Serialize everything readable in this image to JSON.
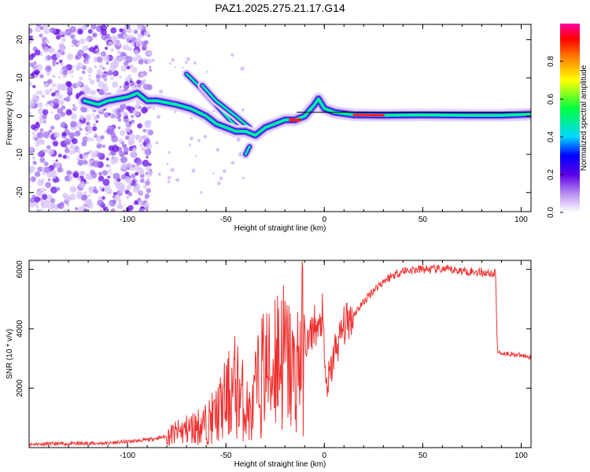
{
  "figure_title": "PAZ1.2025.275.21.17.G14",
  "chart_data": [
    {
      "type": "heatmap",
      "title": "PAZ1.2025.275.21.17.G14",
      "xlabel": "Height of straight line (km)",
      "ylabel": "Frequency (Hz)",
      "xlim": [
        -150,
        105
      ],
      "ylim": [
        -25,
        24
      ],
      "x_ticks": [
        -100,
        -50,
        0,
        50,
        100
      ],
      "y_ticks": [
        -20,
        -10,
        0,
        10,
        20
      ],
      "x_tick_labels": [
        "-100",
        "-50",
        "0",
        "50",
        "100"
      ],
      "y_tick_labels": [
        "-20",
        "-10",
        "0",
        "10",
        "20"
      ],
      "colorbar": {
        "label": "Normalized spectral amplitude",
        "range": [
          0,
          1
        ],
        "ticks": [
          0.0,
          0.2,
          0.4,
          0.6,
          0.8
        ],
        "tick_labels": [
          "0.0",
          "0.2",
          "0.4",
          "0.6",
          "0.8"
        ],
        "colormap": [
          "#ffffff",
          "#b98cf0",
          "#5a00e6",
          "#0000ff",
          "#00d8ff",
          "#00ff40",
          "#ffff00",
          "#ff8000",
          "#ff0000",
          "#ff00a0"
        ]
      },
      "ridge": {
        "description": "dominant frequency trace",
        "points": [
          {
            "x": -122,
            "f": 4
          },
          {
            "x": -115,
            "f": 3
          },
          {
            "x": -110,
            "f": 4
          },
          {
            "x": -100,
            "f": 5
          },
          {
            "x": -95,
            "f": 6
          },
          {
            "x": -90,
            "f": 4
          },
          {
            "x": -85,
            "f": 4
          },
          {
            "x": -75,
            "f": 3
          },
          {
            "x": -68,
            "f": 2
          },
          {
            "x": -60,
            "f": 0
          },
          {
            "x": -55,
            "f": -2
          },
          {
            "x": -50,
            "f": -3
          },
          {
            "x": -45,
            "f": -4
          },
          {
            "x": -40,
            "f": -4
          },
          {
            "x": -35,
            "f": -5
          },
          {
            "x": -30,
            "f": -3
          },
          {
            "x": -25,
            "f": -2
          },
          {
            "x": -20,
            "f": -1
          },
          {
            "x": -15,
            "f": -1
          },
          {
            "x": -10,
            "f": 0
          },
          {
            "x": -5,
            "f": 3
          },
          {
            "x": -3,
            "f": 4.5
          },
          {
            "x": 0,
            "f": 2
          },
          {
            "x": 5,
            "f": 1
          },
          {
            "x": 15,
            "f": 0.3
          },
          {
            "x": 30,
            "f": 0.2
          },
          {
            "x": 50,
            "f": 0.3
          },
          {
            "x": 75,
            "f": 0.2
          },
          {
            "x": 90,
            "f": 0.2
          },
          {
            "x": 105,
            "f": 0.5
          }
        ]
      },
      "branches": [
        {
          "points": [
            {
              "x": -70,
              "f": 11
            },
            {
              "x": -62,
              "f": 7
            },
            {
              "x": -55,
              "f": 3
            },
            {
              "x": -48,
              "f": -1
            },
            {
              "x": -42,
              "f": -4
            }
          ]
        },
        {
          "points": [
            {
              "x": -62,
              "f": 8
            },
            {
              "x": -55,
              "f": 4
            },
            {
              "x": -45,
              "f": 0
            },
            {
              "x": -38,
              "f": -3
            }
          ]
        },
        {
          "points": [
            {
              "x": -38,
              "f": -8
            },
            {
              "x": -40,
              "f": -10
            }
          ]
        }
      ]
    },
    {
      "type": "line",
      "xlabel": "Height of straight line (km)",
      "ylabel": "SNR (10 * v/v)",
      "xlim": [
        -150,
        105
      ],
      "ylim": [
        0,
        6300
      ],
      "x_ticks": [
        -100,
        -50,
        0,
        50,
        100
      ],
      "y_ticks": [
        2000,
        4000,
        6000
      ],
      "x_tick_labels": [
        "-100",
        "-50",
        "0",
        "50",
        "100"
      ],
      "y_tick_labels": [
        "2000",
        "4000",
        "6000"
      ],
      "color": "#f03030",
      "series": [
        {
          "name": "SNR",
          "points": [
            {
              "x": -150,
              "y": 120
            },
            {
              "x": -130,
              "y": 130
            },
            {
              "x": -110,
              "y": 150
            },
            {
              "x": -100,
              "y": 200
            },
            {
              "x": -90,
              "y": 260
            },
            {
              "x": -80,
              "y": 380
            },
            {
              "x": -70,
              "y": 600
            },
            {
              "x": -60,
              "y": 800
            },
            {
              "x": -55,
              "y": 1100
            },
            {
              "x": -50,
              "y": 1600
            },
            {
              "x": -45,
              "y": 2100
            },
            {
              "x": -40,
              "y": 1400
            },
            {
              "x": -37,
              "y": 1000
            },
            {
              "x": -35,
              "y": 1800
            },
            {
              "x": -30,
              "y": 2800
            },
            {
              "x": -27,
              "y": 2300
            },
            {
              "x": -25,
              "y": 3300
            },
            {
              "x": -20,
              "y": 3000
            },
            {
              "x": -15,
              "y": 2400
            },
            {
              "x": -12,
              "y": 3200
            },
            {
              "x": -10,
              "y": 3600
            },
            {
              "x": -8,
              "y": 3500
            },
            {
              "x": -5,
              "y": 4200
            },
            {
              "x": -3,
              "y": 3800
            },
            {
              "x": -1,
              "y": 4500
            },
            {
              "x": 0,
              "y": 3000
            },
            {
              "x": 1,
              "y": 2000
            },
            {
              "x": 3,
              "y": 2400
            },
            {
              "x": 5,
              "y": 3200
            },
            {
              "x": 8,
              "y": 3700
            },
            {
              "x": 10,
              "y": 4100
            },
            {
              "x": 15,
              "y": 4500
            },
            {
              "x": 20,
              "y": 4900
            },
            {
              "x": 25,
              "y": 5300
            },
            {
              "x": 30,
              "y": 5600
            },
            {
              "x": 35,
              "y": 5800
            },
            {
              "x": 40,
              "y": 5950
            },
            {
              "x": 50,
              "y": 6000
            },
            {
              "x": 60,
              "y": 6000
            },
            {
              "x": 70,
              "y": 5950
            },
            {
              "x": 80,
              "y": 5900
            },
            {
              "x": 87,
              "y": 5850
            },
            {
              "x": 88,
              "y": 3200
            },
            {
              "x": 95,
              "y": 3150
            },
            {
              "x": 105,
              "y": 3050
            }
          ]
        }
      ]
    }
  ]
}
